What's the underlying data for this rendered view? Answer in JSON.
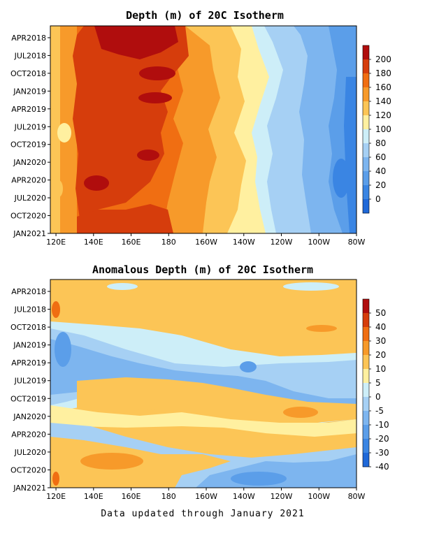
{
  "footer": "Data updated through January 2021",
  "chart_data": [
    {
      "type": "heatmap",
      "title": "Depth (m) of 20C Isotherm",
      "y_tick_labels": [
        "APR2018",
        "JUL2018",
        "OCT2018",
        "JAN2019",
        "APR2019",
        "JUL2019",
        "OCT2019",
        "JAN2020",
        "APR2020",
        "JUL2020",
        "OCT2020",
        "JAN2021"
      ],
      "x_tick_labels": [
        "120E",
        "140E",
        "160E",
        "180",
        "160W",
        "140W",
        "120W",
        "100W",
        "80W"
      ],
      "colorbar_labels": [
        "200",
        "180",
        "160",
        "140",
        "120",
        "100",
        "80",
        "60",
        "40",
        "20",
        "0"
      ],
      "levels": [
        0,
        20,
        40,
        60,
        80,
        100,
        120,
        140,
        160,
        180,
        200
      ],
      "colors": [
        "#1f68d8",
        "#3a85e3",
        "#5b9ee9",
        "#7db5ef",
        "#a6d0f4",
        "#cdeef8",
        "#fff0a0",
        "#fcc556",
        "#f79a2a",
        "#f06e12",
        "#d63d0c",
        "#b00d0d"
      ],
      "x_range_deg": [
        117,
        280
      ],
      "time_range": [
        "2018-02",
        "2021-01"
      ],
      "grid": false
    },
    {
      "type": "heatmap",
      "title": "Anomalous Depth (m) of 20C Isotherm",
      "y_tick_labels": [
        "APR2018",
        "JUL2018",
        "OCT2018",
        "JAN2019",
        "APR2019",
        "JUL2019",
        "OCT2019",
        "JAN2020",
        "APR2020",
        "JUL2020",
        "OCT2020",
        "JAN2021"
      ],
      "x_tick_labels": [
        "120E",
        "140E",
        "160E",
        "180",
        "160W",
        "140W",
        "120W",
        "100W",
        "80W"
      ],
      "colorbar_labels": [
        "50",
        "40",
        "30",
        "20",
        "10",
        "5",
        "0",
        "-5",
        "-10",
        "-20",
        "-30",
        "-40"
      ],
      "levels": [
        -40,
        -30,
        -20,
        -10,
        -5,
        0,
        5,
        10,
        20,
        30,
        40,
        50
      ],
      "colors": [
        "#1f68d8",
        "#3a85e3",
        "#5b9ee9",
        "#7db5ef",
        "#a6d0f4",
        "#cdeef8",
        "#fff0a0",
        "#fcc556",
        "#f79a2a",
        "#f06e12",
        "#d63d0c",
        "#b00d0d"
      ],
      "x_range_deg": [
        117,
        280
      ],
      "time_range": [
        "2018-02",
        "2021-01"
      ],
      "grid": false
    }
  ]
}
